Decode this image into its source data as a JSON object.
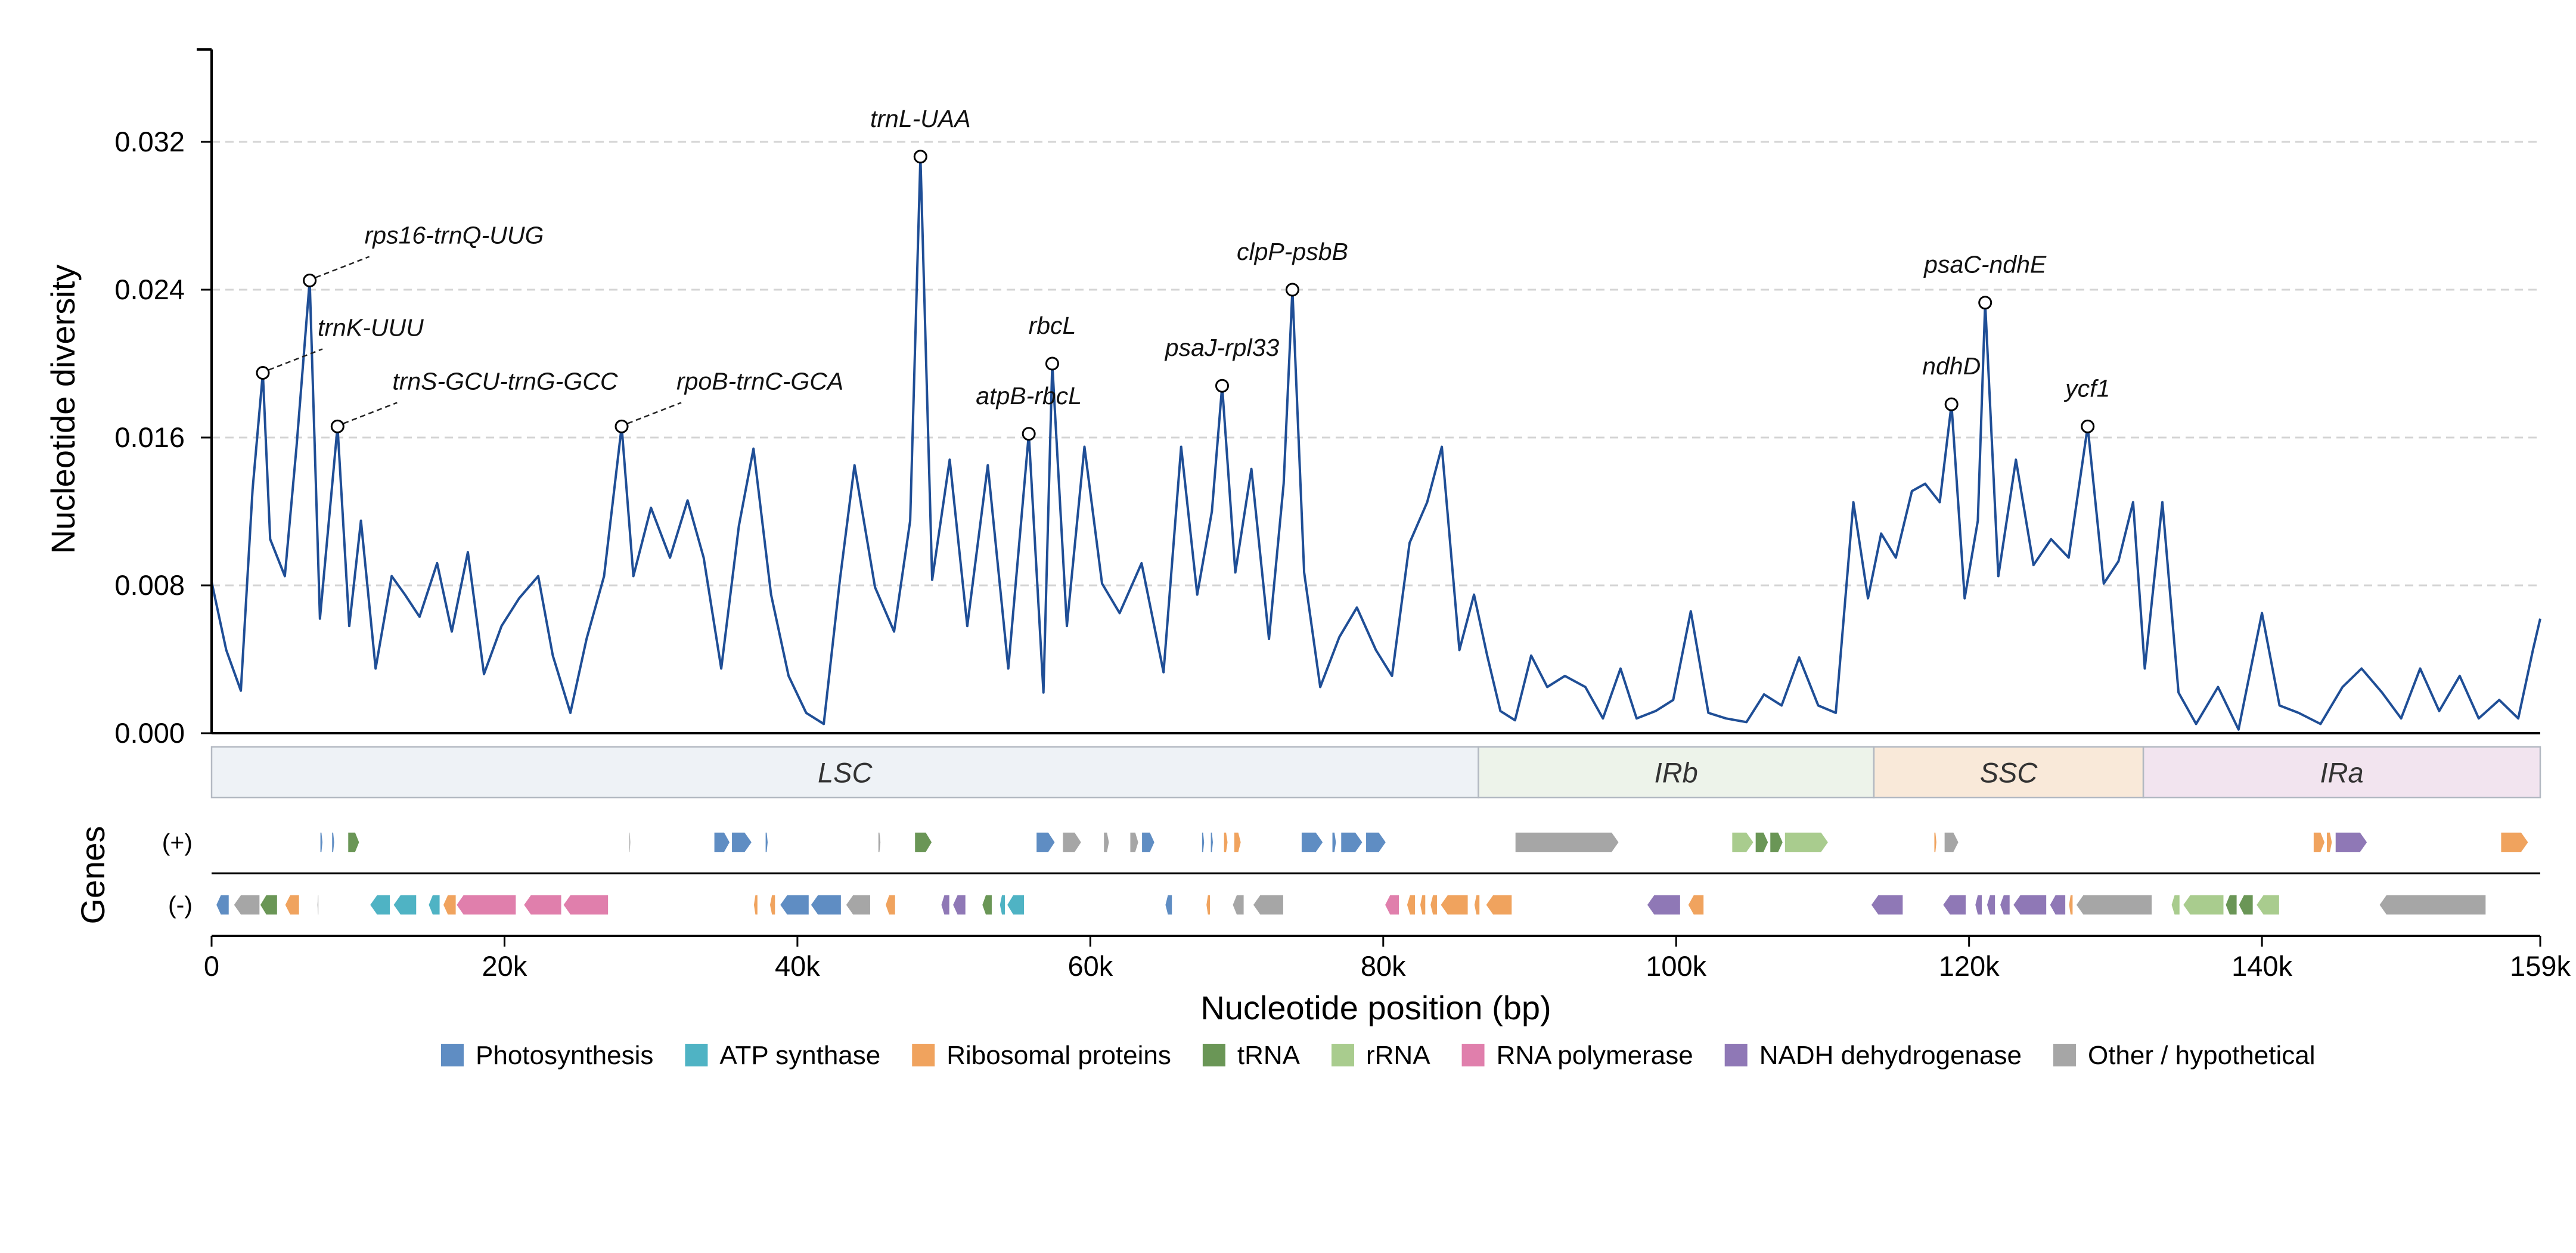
{
  "chart_data": {
    "type": "line",
    "xlabel": "Nucleotide position (bp)",
    "ylabel": "Nucleotide diversity",
    "xlim": [
      0,
      159000
    ],
    "ylim": [
      0,
      0.037
    ],
    "x_ticks": [
      {
        "value": 0,
        "label": "0"
      },
      {
        "value": 20000,
        "label": "20k"
      },
      {
        "value": 40000,
        "label": "40k"
      },
      {
        "value": 60000,
        "label": "60k"
      },
      {
        "value": 80000,
        "label": "80k"
      },
      {
        "value": 100000,
        "label": "100k"
      },
      {
        "value": 120000,
        "label": "120k"
      },
      {
        "value": 140000,
        "label": "140k"
      },
      {
        "value": 159000,
        "label": "159k"
      }
    ],
    "y_ticks": [
      {
        "value": 0,
        "label": "0.000"
      },
      {
        "value": 0.008,
        "label": "0.008"
      },
      {
        "value": 0.016,
        "label": "0.016"
      },
      {
        "value": 0.024,
        "label": "0.024"
      },
      {
        "value": 0.032,
        "label": "0.032"
      }
    ],
    "grid": "horizontal dashed",
    "line_color": "#1f4e96",
    "window_step_bp": 200,
    "series_values": [
      [
        0,
        0.0082
      ],
      [
        1000,
        0.0045
      ],
      [
        2000,
        0.0023
      ],
      [
        2800,
        0.0132
      ],
      [
        3500,
        0.0195
      ],
      [
        4000,
        0.0105
      ],
      [
        5000,
        0.0085
      ],
      [
        5800,
        0.0155
      ],
      [
        6700,
        0.0245
      ],
      [
        7400,
        0.0062
      ],
      [
        8600,
        0.0166
      ],
      [
        9400,
        0.0058
      ],
      [
        10200,
        0.0115
      ],
      [
        11200,
        0.0035
      ],
      [
        12300,
        0.0085
      ],
      [
        13200,
        0.0075
      ],
      [
        14200,
        0.0063
      ],
      [
        15400,
        0.0092
      ],
      [
        16400,
        0.0055
      ],
      [
        17500,
        0.0098
      ],
      [
        18600,
        0.0032
      ],
      [
        19800,
        0.0058
      ],
      [
        21000,
        0.0073
      ],
      [
        22300,
        0.0085
      ],
      [
        23300,
        0.0042
      ],
      [
        24500,
        0.0011
      ],
      [
        25600,
        0.0051
      ],
      [
        26800,
        0.0085
      ],
      [
        28000,
        0.0166
      ],
      [
        28800,
        0.0085
      ],
      [
        30000,
        0.0122
      ],
      [
        31300,
        0.0095
      ],
      [
        32500,
        0.0126
      ],
      [
        33600,
        0.0095
      ],
      [
        34800,
        0.0035
      ],
      [
        36000,
        0.0112
      ],
      [
        37000,
        0.0154
      ],
      [
        38200,
        0.0075
      ],
      [
        39400,
        0.0031
      ],
      [
        40600,
        0.0011
      ],
      [
        41800,
        0.0005
      ],
      [
        42900,
        0.0083
      ],
      [
        43900,
        0.0145
      ],
      [
        45300,
        0.0079
      ],
      [
        46600,
        0.0055
      ],
      [
        47700,
        0.0115
      ],
      [
        48400,
        0.0312
      ],
      [
        49200,
        0.0083
      ],
      [
        50400,
        0.0148
      ],
      [
        51600,
        0.0058
      ],
      [
        53000,
        0.0145
      ],
      [
        54400,
        0.0035
      ],
      [
        55800,
        0.0162
      ],
      [
        56800,
        0.0022
      ],
      [
        57400,
        0.02
      ],
      [
        58400,
        0.0058
      ],
      [
        59600,
        0.0155
      ],
      [
        60800,
        0.0081
      ],
      [
        62000,
        0.0065
      ],
      [
        63500,
        0.0092
      ],
      [
        65000,
        0.0033
      ],
      [
        66200,
        0.0155
      ],
      [
        67300,
        0.0075
      ],
      [
        68300,
        0.012
      ],
      [
        69000,
        0.0188
      ],
      [
        69900,
        0.0087
      ],
      [
        71000,
        0.0143
      ],
      [
        72200,
        0.0051
      ],
      [
        73200,
        0.0135
      ],
      [
        73800,
        0.024
      ],
      [
        74600,
        0.0087
      ],
      [
        75700,
        0.0025
      ],
      [
        77000,
        0.0052
      ],
      [
        78200,
        0.0068
      ],
      [
        79500,
        0.0045
      ],
      [
        80600,
        0.0031
      ],
      [
        81800,
        0.0103
      ],
      [
        83000,
        0.0125
      ],
      [
        84000,
        0.0155
      ],
      [
        85200,
        0.0045
      ],
      [
        86200,
        0.0075
      ],
      [
        87100,
        0.0042
      ],
      [
        88000,
        0.0012
      ],
      [
        89000,
        0.0007
      ],
      [
        90100,
        0.0042
      ],
      [
        91200,
        0.0025
      ],
      [
        92400,
        0.0031
      ],
      [
        93800,
        0.0025
      ],
      [
        95000,
        0.0008
      ],
      [
        96200,
        0.0035
      ],
      [
        97300,
        0.0008
      ],
      [
        98600,
        0.0012
      ],
      [
        99800,
        0.0018
      ],
      [
        101000,
        0.0066
      ],
      [
        102200,
        0.0011
      ],
      [
        103400,
        0.0008
      ],
      [
        104800,
        0.0006
      ],
      [
        106000,
        0.0021
      ],
      [
        107200,
        0.0015
      ],
      [
        108400,
        0.0041
      ],
      [
        109700,
        0.0015
      ],
      [
        110900,
        0.0011
      ],
      [
        112100,
        0.0125
      ],
      [
        113100,
        0.0073
      ],
      [
        114000,
        0.0108
      ],
      [
        115000,
        0.0095
      ],
      [
        116100,
        0.0131
      ],
      [
        117000,
        0.0135
      ],
      [
        118000,
        0.0125
      ],
      [
        118800,
        0.0178
      ],
      [
        119700,
        0.0073
      ],
      [
        120600,
        0.0115
      ],
      [
        121100,
        0.0233
      ],
      [
        122000,
        0.0085
      ],
      [
        123200,
        0.0148
      ],
      [
        124400,
        0.0091
      ],
      [
        125600,
        0.0105
      ],
      [
        126800,
        0.0095
      ],
      [
        128100,
        0.0166
      ],
      [
        129200,
        0.0081
      ],
      [
        130200,
        0.0093
      ],
      [
        131200,
        0.0125
      ],
      [
        132000,
        0.0035
      ],
      [
        133200,
        0.0125
      ],
      [
        134300,
        0.0022
      ],
      [
        135500,
        0.0005
      ],
      [
        137000,
        0.0025
      ],
      [
        138400,
        0.0002
      ],
      [
        140000,
        0.0065
      ],
      [
        141200,
        0.0015
      ],
      [
        142500,
        0.0011
      ],
      [
        144000,
        0.0005
      ],
      [
        145500,
        0.0025
      ],
      [
        146800,
        0.0035
      ],
      [
        148200,
        0.0022
      ],
      [
        149500,
        0.0008
      ],
      [
        150800,
        0.0035
      ],
      [
        152100,
        0.0012
      ],
      [
        153500,
        0.0031
      ],
      [
        154800,
        0.0008
      ],
      [
        156200,
        0.0018
      ],
      [
        157500,
        0.0008
      ],
      [
        158500,
        0.0045
      ],
      [
        159000,
        0.0062
      ]
    ],
    "peaks": [
      {
        "label": "trnK-UUU",
        "x": 3500,
        "y": 0.0195,
        "placement": "upper-right",
        "leader": true
      },
      {
        "label": "rps16-trnQ-UUG",
        "x": 6700,
        "y": 0.0245,
        "placement": "upper-right",
        "leader": true
      },
      {
        "label": "trnS-GCU-trnG-GCC",
        "x": 8600,
        "y": 0.0166,
        "placement": "upper-right",
        "leader": true
      },
      {
        "label": "rpoB-trnC-GCA",
        "x": 28000,
        "y": 0.0166,
        "placement": "upper-right",
        "leader": true
      },
      {
        "label": "trnL-UAA",
        "x": 48400,
        "y": 0.0312,
        "placement": "above",
        "leader": false
      },
      {
        "label": "atpB-rbcL",
        "x": 55800,
        "y": 0.0162,
        "placement": "above",
        "leader": false
      },
      {
        "label": "rbcL",
        "x": 57400,
        "y": 0.02,
        "placement": "above",
        "leader": false
      },
      {
        "label": "psaJ-rpl33",
        "x": 69000,
        "y": 0.0188,
        "placement": "above",
        "leader": false
      },
      {
        "label": "clpP-psbB",
        "x": 73800,
        "y": 0.024,
        "placement": "above",
        "leader": false
      },
      {
        "label": "ndhD",
        "x": 118800,
        "y": 0.0178,
        "placement": "above",
        "leader": false
      },
      {
        "label": "psaC-ndhE",
        "x": 121100,
        "y": 0.0233,
        "placement": "above",
        "leader": false
      },
      {
        "label": "ycf1",
        "x": 128100,
        "y": 0.0166,
        "placement": "above",
        "leader": false
      }
    ],
    "regions": [
      {
        "label": "LSC",
        "start": 0,
        "end": 86500,
        "color": "#eef2f6"
      },
      {
        "label": "IRb",
        "start": 86500,
        "end": 113500,
        "color": "#edf3ea"
      },
      {
        "label": "SSC",
        "start": 113500,
        "end": 131900,
        "color": "#f9e9d9"
      },
      {
        "label": "IRa",
        "start": 131900,
        "end": 159000,
        "color": "#f2e4ef"
      }
    ],
    "genes_track": {
      "title": "Genes",
      "plus_label": "(+)",
      "minus_label": "(-)"
    },
    "genes": {
      "plus": [
        {
          "start": 7400,
          "end": 7600,
          "cat": "photo"
        },
        {
          "start": 8200,
          "end": 8400,
          "cat": "photo"
        },
        {
          "start": 9300,
          "end": 10100,
          "cat": "trna"
        },
        {
          "start": 28500,
          "end": 28600,
          "cat": "other"
        },
        {
          "start": 34300,
          "end": 35400,
          "cat": "photo"
        },
        {
          "start": 35500,
          "end": 36900,
          "cat": "photo"
        },
        {
          "start": 37800,
          "end": 38000,
          "cat": "photo"
        },
        {
          "start": 45500,
          "end": 45700,
          "cat": "other"
        },
        {
          "start": 48000,
          "end": 49200,
          "cat": "trna"
        },
        {
          "start": 56300,
          "end": 57600,
          "cat": "photo"
        },
        {
          "start": 58100,
          "end": 59400,
          "cat": "other"
        },
        {
          "start": 60900,
          "end": 61300,
          "cat": "other"
        },
        {
          "start": 62700,
          "end": 63300,
          "cat": "other"
        },
        {
          "start": 63500,
          "end": 64400,
          "cat": "photo"
        },
        {
          "start": 67600,
          "end": 67800,
          "cat": "photo"
        },
        {
          "start": 68200,
          "end": 68400,
          "cat": "photo"
        },
        {
          "start": 69100,
          "end": 69400,
          "cat": "ribo"
        },
        {
          "start": 69800,
          "end": 70300,
          "cat": "ribo"
        },
        {
          "start": 74400,
          "end": 75900,
          "cat": "photo"
        },
        {
          "start": 76500,
          "end": 76800,
          "cat": "photo"
        },
        {
          "start": 77100,
          "end": 78600,
          "cat": "photo"
        },
        {
          "start": 78800,
          "end": 80200,
          "cat": "photo"
        },
        {
          "start": 89000,
          "end": 96100,
          "cat": "other"
        },
        {
          "start": 103800,
          "end": 105300,
          "cat": "rrna"
        },
        {
          "start": 105400,
          "end": 106300,
          "cat": "trna"
        },
        {
          "start": 106400,
          "end": 107300,
          "cat": "trna"
        },
        {
          "start": 107400,
          "end": 110400,
          "cat": "rrna"
        },
        {
          "start": 117600,
          "end": 117800,
          "cat": "ribo"
        },
        {
          "start": 118300,
          "end": 119300,
          "cat": "other"
        },
        {
          "start": 143500,
          "end": 144300,
          "cat": "ribo"
        },
        {
          "start": 144400,
          "end": 144800,
          "cat": "ribo"
        },
        {
          "start": 145000,
          "end": 147200,
          "cat": "nadh"
        },
        {
          "start": 156300,
          "end": 158200,
          "cat": "ribo"
        }
      ],
      "minus": [
        {
          "start": 300,
          "end": 1200,
          "cat": "photo"
        },
        {
          "start": 1500,
          "end": 3300,
          "cat": "other"
        },
        {
          "start": 3300,
          "end": 4500,
          "cat": "trna"
        },
        {
          "start": 5000,
          "end": 6000,
          "cat": "ribo"
        },
        {
          "start": 7200,
          "end": 7300,
          "cat": "other"
        },
        {
          "start": 10800,
          "end": 12200,
          "cat": "atp"
        },
        {
          "start": 12400,
          "end": 14000,
          "cat": "atp"
        },
        {
          "start": 14800,
          "end": 15600,
          "cat": "atp"
        },
        {
          "start": 15800,
          "end": 16700,
          "cat": "ribo"
        },
        {
          "start": 16700,
          "end": 20800,
          "cat": "rnap"
        },
        {
          "start": 21300,
          "end": 23900,
          "cat": "rnap"
        },
        {
          "start": 24000,
          "end": 27100,
          "cat": "rnap"
        },
        {
          "start": 37000,
          "end": 37300,
          "cat": "ribo"
        },
        {
          "start": 38100,
          "end": 38500,
          "cat": "ribo"
        },
        {
          "start": 38800,
          "end": 40800,
          "cat": "photo"
        },
        {
          "start": 40900,
          "end": 43000,
          "cat": "photo"
        },
        {
          "start": 43300,
          "end": 45000,
          "cat": "other"
        },
        {
          "start": 46000,
          "end": 46700,
          "cat": "ribo"
        },
        {
          "start": 49800,
          "end": 50400,
          "cat": "nadh"
        },
        {
          "start": 50600,
          "end": 51500,
          "cat": "nadh"
        },
        {
          "start": 52600,
          "end": 53300,
          "cat": "trna"
        },
        {
          "start": 53800,
          "end": 54200,
          "cat": "atp"
        },
        {
          "start": 54300,
          "end": 55500,
          "cat": "atp"
        },
        {
          "start": 65100,
          "end": 65600,
          "cat": "photo"
        },
        {
          "start": 67900,
          "end": 68200,
          "cat": "ribo"
        },
        {
          "start": 69700,
          "end": 70500,
          "cat": "other"
        },
        {
          "start": 71100,
          "end": 73200,
          "cat": "other"
        },
        {
          "start": 80100,
          "end": 81100,
          "cat": "rnap"
        },
        {
          "start": 81600,
          "end": 82200,
          "cat": "ribo"
        },
        {
          "start": 82500,
          "end": 82900,
          "cat": "ribo"
        },
        {
          "start": 83200,
          "end": 83700,
          "cat": "ribo"
        },
        {
          "start": 83900,
          "end": 85800,
          "cat": "ribo"
        },
        {
          "start": 86200,
          "end": 86600,
          "cat": "ribo"
        },
        {
          "start": 87000,
          "end": 88800,
          "cat": "ribo"
        },
        {
          "start": 98000,
          "end": 100300,
          "cat": "nadh"
        },
        {
          "start": 100800,
          "end": 101900,
          "cat": "ribo"
        },
        {
          "start": 113300,
          "end": 115500,
          "cat": "nadh"
        },
        {
          "start": 118200,
          "end": 119800,
          "cat": "nadh"
        },
        {
          "start": 120400,
          "end": 120900,
          "cat": "nadh"
        },
        {
          "start": 121200,
          "end": 121800,
          "cat": "nadh"
        },
        {
          "start": 122100,
          "end": 122800,
          "cat": "nadh"
        },
        {
          "start": 123000,
          "end": 125300,
          "cat": "nadh"
        },
        {
          "start": 125500,
          "end": 126600,
          "cat": "nadh"
        },
        {
          "start": 126800,
          "end": 127100,
          "cat": "ribo"
        },
        {
          "start": 127300,
          "end": 132500,
          "cat": "other"
        },
        {
          "start": 133800,
          "end": 134400,
          "cat": "rrna"
        },
        {
          "start": 134600,
          "end": 137400,
          "cat": "rrna"
        },
        {
          "start": 137500,
          "end": 138300,
          "cat": "trna"
        },
        {
          "start": 138400,
          "end": 139400,
          "cat": "trna"
        },
        {
          "start": 139600,
          "end": 141200,
          "cat": "rrna"
        },
        {
          "start": 148000,
          "end": 155300,
          "cat": "other"
        }
      ]
    },
    "legend": {
      "placement": "bottom-center",
      "items": [
        {
          "key": "photo",
          "label": "Photosynthesis",
          "color": "#5f8dc3"
        },
        {
          "key": "atp",
          "label": "ATP synthase",
          "color": "#4fb3c4"
        },
        {
          "key": "ribo",
          "label": "Ribosomal proteins",
          "color": "#f0a35e"
        },
        {
          "key": "trna",
          "label": "tRNA",
          "color": "#6a9656"
        },
        {
          "key": "rrna",
          "label": "rRNA",
          "color": "#a9cc8e"
        },
        {
          "key": "rnap",
          "label": "RNA polymerase",
          "color": "#e07fac"
        },
        {
          "key": "nadh",
          "label": "NADH dehydrogenase",
          "color": "#8f78b6"
        },
        {
          "key": "other",
          "label": "Other / hypothetical",
          "color": "#a6a6a6"
        }
      ]
    }
  }
}
